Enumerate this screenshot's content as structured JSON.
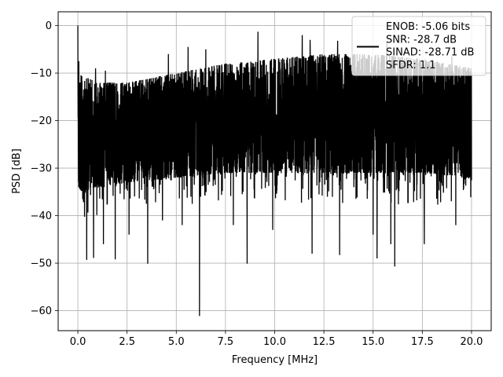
{
  "chart_data": {
    "type": "line",
    "title": "",
    "xlabel": "Frequency [MHz]",
    "ylabel": "PSD [dB]",
    "xlim": [
      -1.0,
      21.0
    ],
    "ylim": [
      -64.2,
      2.9
    ],
    "xticks": [
      0.0,
      2.5,
      5.0,
      7.5,
      10.0,
      12.5,
      15.0,
      17.5,
      20.0
    ],
    "xtick_labels": [
      "0.0",
      "2.5",
      "5.0",
      "7.5",
      "10.0",
      "12.5",
      "15.0",
      "17.5",
      "20.0"
    ],
    "yticks": [
      0,
      -10,
      -20,
      -30,
      -40,
      -50,
      -60
    ],
    "ytick_labels": [
      "0",
      "−10",
      "−20",
      "−30",
      "−40",
      "−50",
      "−60"
    ],
    "grid": true,
    "legend_position": "top-right",
    "series": [
      {
        "color": "#000000",
        "x_range": [
          0.0,
          20.0
        ],
        "band_upper": [
          [
            0.0,
            -10
          ],
          [
            1.0,
            -12
          ],
          [
            2.5,
            -12
          ],
          [
            5.0,
            -10
          ],
          [
            7.5,
            -8
          ],
          [
            10.0,
            -7
          ],
          [
            12.5,
            -6
          ],
          [
            15.0,
            -6
          ],
          [
            17.5,
            -7
          ],
          [
            20.0,
            -9
          ]
        ],
        "band_lower": [
          [
            0.0,
            -35
          ],
          [
            1.0,
            -34
          ],
          [
            2.5,
            -33
          ],
          [
            5.0,
            -32
          ],
          [
            7.5,
            -31
          ],
          [
            10.0,
            -31
          ],
          [
            12.5,
            -31
          ],
          [
            15.0,
            -31
          ],
          [
            17.5,
            -31
          ],
          [
            20.0,
            -32
          ]
        ],
        "peaks": [
          [
            0.0,
            0.0
          ],
          [
            0.05,
            -7.5
          ],
          [
            0.9,
            -9
          ],
          [
            1.4,
            -9.5
          ],
          [
            3.55,
            -8.5
          ],
          [
            4.6,
            -6
          ],
          [
            5.6,
            -4.5
          ],
          [
            6.5,
            -5
          ],
          [
            7.9,
            -4.5
          ],
          [
            9.15,
            -1.3
          ],
          [
            11.4,
            -2
          ],
          [
            11.8,
            -3
          ],
          [
            13.2,
            -3.2
          ],
          [
            15.7,
            -3.5
          ],
          [
            19.0,
            -6.5
          ]
        ],
        "dips": [
          [
            0.45,
            -49.3
          ],
          [
            0.8,
            -48.9
          ],
          [
            1.3,
            -46
          ],
          [
            1.9,
            -49.2
          ],
          [
            2.6,
            -44
          ],
          [
            3.55,
            -50.1
          ],
          [
            4.3,
            -41
          ],
          [
            5.3,
            -42
          ],
          [
            6.18,
            -61.1
          ],
          [
            7.9,
            -42
          ],
          [
            8.6,
            -50.1
          ],
          [
            9.9,
            -43
          ],
          [
            11.9,
            -48
          ],
          [
            13.3,
            -48.3
          ],
          [
            15.0,
            -44
          ],
          [
            15.2,
            -49
          ],
          [
            15.9,
            -46
          ],
          [
            16.1,
            -50.7
          ],
          [
            17.6,
            -46
          ],
          [
            19.2,
            -42
          ]
        ]
      }
    ],
    "legend": {
      "entries": [
        "ENOB: -5.06 bits",
        "SNR: -28.7 dB",
        "SINAD: -28.71 dB",
        "SFDR: 1.1"
      ],
      "line_color": "#000000"
    }
  }
}
